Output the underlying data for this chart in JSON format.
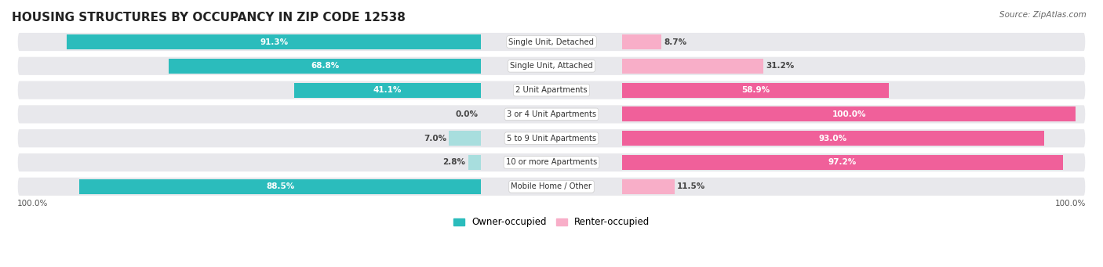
{
  "title": "HOUSING STRUCTURES BY OCCUPANCY IN ZIP CODE 12538",
  "source": "Source: ZipAtlas.com",
  "categories": [
    "Single Unit, Detached",
    "Single Unit, Attached",
    "2 Unit Apartments",
    "3 or 4 Unit Apartments",
    "5 to 9 Unit Apartments",
    "10 or more Apartments",
    "Mobile Home / Other"
  ],
  "owner_pct": [
    91.3,
    68.8,
    41.1,
    0.0,
    7.0,
    2.8,
    88.5
  ],
  "renter_pct": [
    8.7,
    31.2,
    58.9,
    100.0,
    93.0,
    97.2,
    11.5
  ],
  "owner_color_dark": "#2bbcbc",
  "owner_color_light": "#a8dede",
  "renter_color_dark": "#f0609a",
  "renter_color_light": "#f8aec8",
  "row_bg_color": "#e8e8ec",
  "title_fontsize": 11,
  "bar_fontsize": 7.5,
  "source_fontsize": 7.5,
  "legend_fontsize": 8.5
}
